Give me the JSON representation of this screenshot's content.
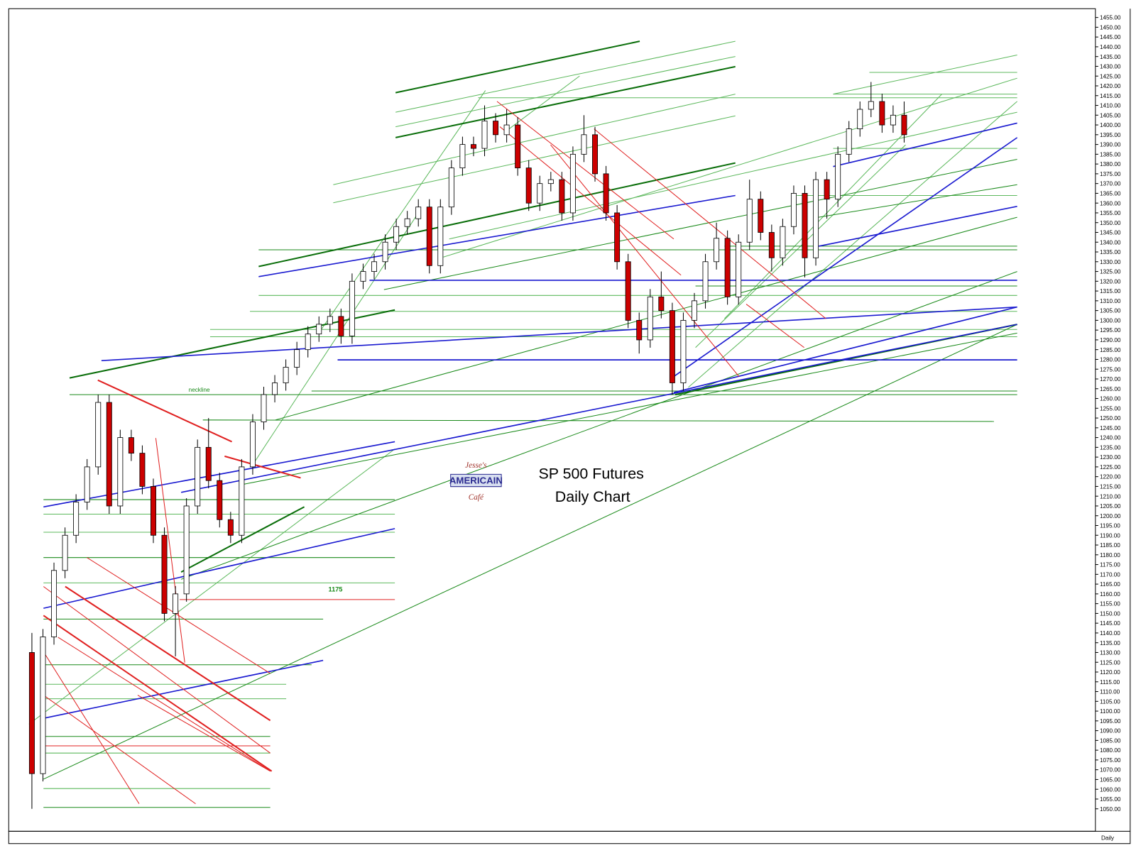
{
  "chart_data": {
    "type": "candlestick",
    "title": "SP 500 Futures",
    "subtitle": "Daily Chart",
    "annotations": [
      "neckline",
      "1175"
    ],
    "timeframe": "Daily",
    "logo": [
      "Jesse's",
      "AMERICAIN",
      "Café"
    ],
    "up_color": "#ffffff",
    "down_color": "#cc0000",
    "wick_color": "#000000",
    "ylim": [
      1038.5,
      1459.5
    ],
    "yticks": [
      {
        "value": 1455,
        "label": "1455.00"
      },
      {
        "value": 1450,
        "label": "1450.00"
      },
      {
        "value": 1445,
        "label": "1445.00"
      },
      {
        "value": 1440,
        "label": "1440.00"
      },
      {
        "value": 1435,
        "label": "1435.00"
      },
      {
        "value": 1430,
        "label": "1430.00"
      },
      {
        "value": 1425,
        "label": "1425.00"
      },
      {
        "value": 1420,
        "label": "1420.00"
      },
      {
        "value": 1415,
        "label": "1415.00"
      },
      {
        "value": 1410,
        "label": "1410.00"
      },
      {
        "value": 1405,
        "label": "1405.00"
      },
      {
        "value": 1400,
        "label": "1400.00"
      },
      {
        "value": 1395,
        "label": "1395.00"
      },
      {
        "value": 1390,
        "label": "1390.00"
      },
      {
        "value": 1385,
        "label": "1385.00"
      },
      {
        "value": 1380,
        "label": "1380.00"
      },
      {
        "value": 1375,
        "label": "1375.00"
      },
      {
        "value": 1370,
        "label": "1370.00"
      },
      {
        "value": 1365,
        "label": "1365.00"
      },
      {
        "value": 1360,
        "label": "1360.00"
      },
      {
        "value": 1355,
        "label": "1355.00"
      },
      {
        "value": 1350,
        "label": "1350.00"
      },
      {
        "value": 1345,
        "label": "1345.00"
      },
      {
        "value": 1340,
        "label": "1340.00"
      },
      {
        "value": 1335,
        "label": "1335.00"
      },
      {
        "value": 1330,
        "label": "1330.00"
      },
      {
        "value": 1325,
        "label": "1325.00"
      },
      {
        "value": 1320,
        "label": "1320.00"
      },
      {
        "value": 1315,
        "label": "1315.00"
      },
      {
        "value": 1310,
        "label": "1310.00"
      },
      {
        "value": 1305,
        "label": "1305.00"
      },
      {
        "value": 1300,
        "label": "1300.00"
      },
      {
        "value": 1295,
        "label": "1295.00"
      },
      {
        "value": 1290,
        "label": "1290.00"
      },
      {
        "value": 1285,
        "label": "1285.00"
      },
      {
        "value": 1280,
        "label": "1280.00"
      },
      {
        "value": 1275,
        "label": "1275.00"
      },
      {
        "value": 1270,
        "label": "1270.00"
      },
      {
        "value": 1265,
        "label": "1265.00"
      },
      {
        "value": 1260,
        "label": "1260.00"
      },
      {
        "value": 1255,
        "label": "1255.00"
      },
      {
        "value": 1250,
        "label": "1250.00"
      },
      {
        "value": 1245,
        "label": "1245.00"
      },
      {
        "value": 1240,
        "label": "1240.00"
      },
      {
        "value": 1235,
        "label": "1235.00"
      },
      {
        "value": 1230,
        "label": "1230.00"
      },
      {
        "value": 1225,
        "label": "1225.00"
      },
      {
        "value": 1220,
        "label": "1220.00"
      },
      {
        "value": 1215,
        "label": "1215.00"
      },
      {
        "value": 1210,
        "label": "1210.00"
      },
      {
        "value": 1205,
        "label": "1205.00"
      },
      {
        "value": 1200,
        "label": "1200.00"
      },
      {
        "value": 1195,
        "label": "1195.00"
      },
      {
        "value": 1190,
        "label": "1190.00"
      },
      {
        "value": 1185,
        "label": "1185.00"
      },
      {
        "value": 1180,
        "label": "1180.00"
      },
      {
        "value": 1175,
        "label": "1175.00"
      },
      {
        "value": 1170,
        "label": "1170.00"
      },
      {
        "value": 1165,
        "label": "1165.00"
      },
      {
        "value": 1160,
        "label": "1160.00"
      },
      {
        "value": 1155,
        "label": "1155.00"
      },
      {
        "value": 1150,
        "label": "1150.00"
      },
      {
        "value": 1145,
        "label": "1145.00"
      },
      {
        "value": 1140,
        "label": "1140.00"
      },
      {
        "value": 1135,
        "label": "1135.00"
      },
      {
        "value": 1130,
        "label": "1130.00"
      },
      {
        "value": 1125,
        "label": "1125.00"
      },
      {
        "value": 1120,
        "label": "1120.00"
      },
      {
        "value": 1115,
        "label": "1115.00"
      },
      {
        "value": 1110,
        "label": "1110.00"
      },
      {
        "value": 1105,
        "label": "1105.00"
      },
      {
        "value": 1100,
        "label": "1100.00"
      },
      {
        "value": 1095,
        "label": "1095.00"
      },
      {
        "value": 1090,
        "label": "1090.00"
      },
      {
        "value": 1085,
        "label": "1085.00"
      },
      {
        "value": 1080,
        "label": "1080.00"
      },
      {
        "value": 1075,
        "label": "1075.00"
      },
      {
        "value": 1070,
        "label": "1070.00"
      },
      {
        "value": 1065,
        "label": "1065.00"
      },
      {
        "value": 1060,
        "label": "1060.00"
      },
      {
        "value": 1055,
        "label": "1055.00"
      },
      {
        "value": 1050,
        "label": "1050.00"
      }
    ],
    "ohlc": [
      [
        1130,
        1140,
        1050,
        1068
      ],
      [
        1068,
        1142,
        1064,
        1138
      ],
      [
        1138,
        1176,
        1134,
        1172
      ],
      [
        1172,
        1194,
        1168,
        1190
      ],
      [
        1190,
        1211,
        1186,
        1207
      ],
      [
        1207,
        1229,
        1203,
        1225
      ],
      [
        1225,
        1262,
        1221,
        1258
      ],
      [
        1258,
        1262,
        1201,
        1205
      ],
      [
        1205,
        1244,
        1201,
        1240
      ],
      [
        1240,
        1244,
        1228,
        1232
      ],
      [
        1232,
        1236,
        1211,
        1215
      ],
      [
        1215,
        1219,
        1186,
        1190
      ],
      [
        1190,
        1194,
        1146,
        1150
      ],
      [
        1150,
        1164,
        1128,
        1160
      ],
      [
        1160,
        1209,
        1156,
        1205
      ],
      [
        1205,
        1239,
        1201,
        1235
      ],
      [
        1235,
        1250,
        1214,
        1218
      ],
      [
        1218,
        1222,
        1194,
        1198
      ],
      [
        1198,
        1202,
        1186,
        1190
      ],
      [
        1190,
        1229,
        1186,
        1225
      ],
      [
        1225,
        1252,
        1221,
        1248
      ],
      [
        1248,
        1266,
        1244,
        1262
      ],
      [
        1262,
        1272,
        1258,
        1268
      ],
      [
        1268,
        1280,
        1264,
        1276
      ],
      [
        1276,
        1289,
        1272,
        1285
      ],
      [
        1285,
        1297,
        1281,
        1293
      ],
      [
        1293,
        1302,
        1289,
        1298
      ],
      [
        1298,
        1306,
        1294,
        1302
      ],
      [
        1302,
        1306,
        1288,
        1292
      ],
      [
        1292,
        1324,
        1288,
        1320
      ],
      [
        1320,
        1329,
        1316,
        1325
      ],
      [
        1325,
        1334,
        1321,
        1330
      ],
      [
        1330,
        1344,
        1326,
        1340
      ],
      [
        1340,
        1352,
        1336,
        1348
      ],
      [
        1348,
        1356,
        1344,
        1352
      ],
      [
        1352,
        1362,
        1348,
        1358
      ],
      [
        1358,
        1362,
        1324,
        1328
      ],
      [
        1328,
        1362,
        1324,
        1358
      ],
      [
        1358,
        1382,
        1354,
        1378
      ],
      [
        1378,
        1394,
        1374,
        1390
      ],
      [
        1390,
        1394,
        1384,
        1388
      ],
      [
        1388,
        1410,
        1384,
        1402
      ],
      [
        1402,
        1406,
        1391,
        1395
      ],
      [
        1395,
        1408,
        1391,
        1400
      ],
      [
        1400,
        1404,
        1374,
        1378
      ],
      [
        1378,
        1382,
        1356,
        1360
      ],
      [
        1360,
        1374,
        1356,
        1370
      ],
      [
        1370,
        1376,
        1366,
        1372
      ],
      [
        1372,
        1376,
        1351,
        1355
      ],
      [
        1355,
        1389,
        1351,
        1385
      ],
      [
        1385,
        1405,
        1381,
        1395
      ],
      [
        1395,
        1399,
        1371,
        1375
      ],
      [
        1375,
        1379,
        1351,
        1355
      ],
      [
        1355,
        1359,
        1326,
        1330
      ],
      [
        1330,
        1334,
        1296,
        1300
      ],
      [
        1300,
        1304,
        1283,
        1290
      ],
      [
        1290,
        1316,
        1286,
        1312
      ],
      [
        1312,
        1325,
        1301,
        1305
      ],
      [
        1305,
        1309,
        1262,
        1268
      ],
      [
        1268,
        1304,
        1264,
        1300
      ],
      [
        1300,
        1314,
        1296,
        1310
      ],
      [
        1310,
        1334,
        1306,
        1330
      ],
      [
        1330,
        1350,
        1326,
        1342
      ],
      [
        1342,
        1346,
        1308,
        1312
      ],
      [
        1312,
        1344,
        1308,
        1340
      ],
      [
        1340,
        1372,
        1336,
        1362
      ],
      [
        1362,
        1366,
        1341,
        1345
      ],
      [
        1345,
        1349,
        1325,
        1332
      ],
      [
        1332,
        1352,
        1328,
        1348
      ],
      [
        1348,
        1369,
        1344,
        1365
      ],
      [
        1365,
        1369,
        1322,
        1332
      ],
      [
        1332,
        1376,
        1328,
        1372
      ],
      [
        1372,
        1376,
        1352,
        1362
      ],
      [
        1362,
        1389,
        1358,
        1385
      ],
      [
        1385,
        1402,
        1381,
        1398
      ],
      [
        1398,
        1412,
        1394,
        1408
      ],
      [
        1408,
        1422,
        1404,
        1412
      ],
      [
        1412,
        1416,
        1396,
        1400
      ],
      [
        1400,
        1410,
        1396,
        1405
      ],
      [
        1405,
        1412,
        1391,
        1395
      ]
    ]
  }
}
